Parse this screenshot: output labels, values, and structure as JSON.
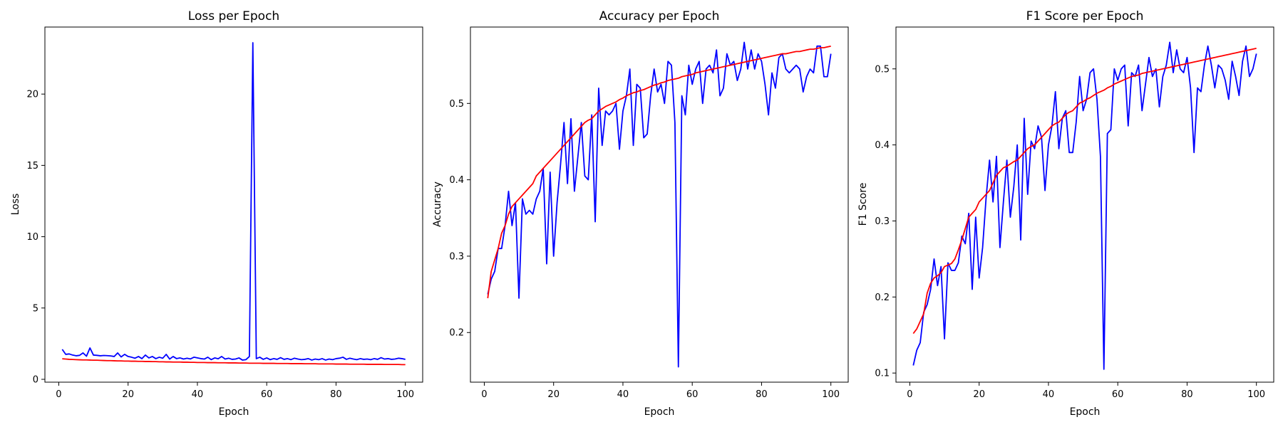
{
  "chart_data": [
    {
      "type": "line",
      "title": "Loss per Epoch",
      "xlabel": "Epoch",
      "ylabel": "Loss",
      "xlim": [
        -4,
        105
      ],
      "ylim": [
        -0.2,
        24.7
      ],
      "xticks": [
        0,
        20,
        40,
        60,
        80,
        100
      ],
      "yticks": [
        0,
        5,
        10,
        15,
        20
      ],
      "grid": false,
      "legend": "none",
      "x": [
        1,
        2,
        3,
        4,
        5,
        6,
        7,
        8,
        9,
        10,
        11,
        12,
        13,
        14,
        15,
        16,
        17,
        18,
        19,
        20,
        21,
        22,
        23,
        24,
        25,
        26,
        27,
        28,
        29,
        30,
        31,
        32,
        33,
        34,
        35,
        36,
        37,
        38,
        39,
        40,
        41,
        42,
        43,
        44,
        45,
        46,
        47,
        48,
        49,
        50,
        51,
        52,
        53,
        54,
        55,
        56,
        57,
        58,
        59,
        60,
        61,
        62,
        63,
        64,
        65,
        66,
        67,
        68,
        69,
        70,
        71,
        72,
        73,
        74,
        75,
        76,
        77,
        78,
        79,
        80,
        81,
        82,
        83,
        84,
        85,
        86,
        87,
        88,
        89,
        90,
        91,
        92,
        93,
        94,
        95,
        96,
        97,
        98,
        99,
        100
      ],
      "series": [
        {
          "color": "#0000ff",
          "values": [
            2.1,
            1.75,
            1.78,
            1.7,
            1.65,
            1.68,
            1.85,
            1.62,
            2.2,
            1.7,
            1.68,
            1.65,
            1.67,
            1.66,
            1.64,
            1.6,
            1.85,
            1.57,
            1.75,
            1.6,
            1.55,
            1.48,
            1.6,
            1.45,
            1.7,
            1.5,
            1.6,
            1.45,
            1.55,
            1.48,
            1.75,
            1.42,
            1.6,
            1.45,
            1.5,
            1.42,
            1.48,
            1.43,
            1.55,
            1.5,
            1.45,
            1.42,
            1.55,
            1.38,
            1.5,
            1.44,
            1.6,
            1.42,
            1.48,
            1.4,
            1.42,
            1.5,
            1.35,
            1.38,
            1.6,
            23.6,
            1.45,
            1.55,
            1.4,
            1.5,
            1.38,
            1.45,
            1.4,
            1.52,
            1.4,
            1.45,
            1.38,
            1.48,
            1.42,
            1.38,
            1.4,
            1.45,
            1.35,
            1.42,
            1.38,
            1.45,
            1.35,
            1.42,
            1.38,
            1.45,
            1.48,
            1.55,
            1.4,
            1.48,
            1.42,
            1.38,
            1.45,
            1.4,
            1.42,
            1.38,
            1.45,
            1.4,
            1.52,
            1.42,
            1.45,
            1.4,
            1.42,
            1.48,
            1.45,
            1.4
          ]
        },
        {
          "color": "#ff0000",
          "values": [
            1.44,
            1.42,
            1.4,
            1.39,
            1.38,
            1.37,
            1.36,
            1.36,
            1.35,
            1.34,
            1.34,
            1.33,
            1.32,
            1.31,
            1.31,
            1.3,
            1.29,
            1.29,
            1.28,
            1.28,
            1.27,
            1.27,
            1.26,
            1.26,
            1.25,
            1.25,
            1.24,
            1.24,
            1.23,
            1.23,
            1.22,
            1.22,
            1.21,
            1.21,
            1.21,
            1.2,
            1.2,
            1.19,
            1.19,
            1.18,
            1.18,
            1.18,
            1.17,
            1.17,
            1.17,
            1.16,
            1.16,
            1.16,
            1.15,
            1.15,
            1.15,
            1.14,
            1.14,
            1.14,
            1.13,
            1.13,
            1.13,
            1.13,
            1.12,
            1.12,
            1.12,
            1.12,
            1.11,
            1.11,
            1.11,
            1.11,
            1.1,
            1.1,
            1.1,
            1.1,
            1.09,
            1.09,
            1.09,
            1.09,
            1.08,
            1.08,
            1.08,
            1.08,
            1.08,
            1.07,
            1.07,
            1.07,
            1.07,
            1.06,
            1.06,
            1.06,
            1.06,
            1.06,
            1.05,
            1.05,
            1.05,
            1.05,
            1.05,
            1.04,
            1.04,
            1.04,
            1.04,
            1.04,
            1.03,
            1.03
          ]
        }
      ]
    },
    {
      "type": "line",
      "title": "Accuracy per Epoch",
      "xlabel": "Epoch",
      "ylabel": "Accuracy",
      "xlim": [
        -4,
        105
      ],
      "ylim": [
        0.135,
        0.6
      ],
      "xticks": [
        0,
        20,
        40,
        60,
        80,
        100
      ],
      "yticks": [
        0.2,
        0.3,
        0.4,
        0.5
      ],
      "grid": false,
      "legend": "none",
      "x": [
        1,
        2,
        3,
        4,
        5,
        6,
        7,
        8,
        9,
        10,
        11,
        12,
        13,
        14,
        15,
        16,
        17,
        18,
        19,
        20,
        21,
        22,
        23,
        24,
        25,
        26,
        27,
        28,
        29,
        30,
        31,
        32,
        33,
        34,
        35,
        36,
        37,
        38,
        39,
        40,
        41,
        42,
        43,
        44,
        45,
        46,
        47,
        48,
        49,
        50,
        51,
        52,
        53,
        54,
        55,
        56,
        57,
        58,
        59,
        60,
        61,
        62,
        63,
        64,
        65,
        66,
        67,
        68,
        69,
        70,
        71,
        72,
        73,
        74,
        75,
        76,
        77,
        78,
        79,
        80,
        81,
        82,
        83,
        84,
        85,
        86,
        87,
        88,
        89,
        90,
        91,
        92,
        93,
        94,
        95,
        96,
        97,
        98,
        99,
        100
      ],
      "series": [
        {
          "color": "#0000ff",
          "values": [
            0.25,
            0.27,
            0.28,
            0.31,
            0.31,
            0.34,
            0.385,
            0.34,
            0.37,
            0.245,
            0.375,
            0.355,
            0.36,
            0.355,
            0.375,
            0.385,
            0.415,
            0.29,
            0.41,
            0.3,
            0.37,
            0.42,
            0.475,
            0.395,
            0.48,
            0.385,
            0.43,
            0.475,
            0.405,
            0.4,
            0.485,
            0.345,
            0.52,
            0.445,
            0.49,
            0.485,
            0.49,
            0.5,
            0.44,
            0.49,
            0.51,
            0.545,
            0.445,
            0.525,
            0.52,
            0.455,
            0.46,
            0.51,
            0.545,
            0.515,
            0.525,
            0.5,
            0.555,
            0.55,
            0.475,
            0.155,
            0.51,
            0.485,
            0.55,
            0.525,
            0.545,
            0.555,
            0.5,
            0.545,
            0.55,
            0.54,
            0.57,
            0.51,
            0.52,
            0.565,
            0.55,
            0.555,
            0.53,
            0.545,
            0.58,
            0.545,
            0.57,
            0.545,
            0.565,
            0.555,
            0.525,
            0.485,
            0.54,
            0.52,
            0.56,
            0.565,
            0.545,
            0.54,
            0.545,
            0.55,
            0.545,
            0.515,
            0.535,
            0.545,
            0.54,
            0.575,
            0.575,
            0.535,
            0.535,
            0.565
          ]
        },
        {
          "color": "#ff0000",
          "values": [
            0.245,
            0.28,
            0.295,
            0.31,
            0.33,
            0.34,
            0.355,
            0.365,
            0.37,
            0.375,
            0.38,
            0.385,
            0.39,
            0.395,
            0.405,
            0.41,
            0.415,
            0.42,
            0.425,
            0.43,
            0.435,
            0.44,
            0.445,
            0.45,
            0.455,
            0.46,
            0.465,
            0.47,
            0.475,
            0.478,
            0.48,
            0.485,
            0.49,
            0.493,
            0.496,
            0.498,
            0.5,
            0.502,
            0.505,
            0.507,
            0.51,
            0.512,
            0.514,
            0.515,
            0.517,
            0.518,
            0.52,
            0.522,
            0.524,
            0.525,
            0.527,
            0.528,
            0.53,
            0.531,
            0.532,
            0.533,
            0.535,
            0.536,
            0.537,
            0.538,
            0.54,
            0.541,
            0.542,
            0.543,
            0.544,
            0.545,
            0.546,
            0.547,
            0.548,
            0.549,
            0.55,
            0.551,
            0.552,
            0.553,
            0.554,
            0.555,
            0.556,
            0.557,
            0.558,
            0.559,
            0.56,
            0.561,
            0.562,
            0.563,
            0.564,
            0.565,
            0.565,
            0.566,
            0.567,
            0.568,
            0.568,
            0.569,
            0.57,
            0.571,
            0.571,
            0.572,
            0.573,
            0.573,
            0.574,
            0.575
          ]
        }
      ]
    },
    {
      "type": "line",
      "title": "F1 Score per Epoch",
      "xlabel": "Epoch",
      "ylabel": "F1 Score",
      "xlim": [
        -4,
        105
      ],
      "ylim": [
        0.088,
        0.555
      ],
      "xticks": [
        0,
        20,
        40,
        60,
        80,
        100
      ],
      "yticks": [
        0.1,
        0.2,
        0.3,
        0.4,
        0.5
      ],
      "grid": false,
      "legend": "none",
      "x": [
        1,
        2,
        3,
        4,
        5,
        6,
        7,
        8,
        9,
        10,
        11,
        12,
        13,
        14,
        15,
        16,
        17,
        18,
        19,
        20,
        21,
        22,
        23,
        24,
        25,
        26,
        27,
        28,
        29,
        30,
        31,
        32,
        33,
        34,
        35,
        36,
        37,
        38,
        39,
        40,
        41,
        42,
        43,
        44,
        45,
        46,
        47,
        48,
        49,
        50,
        51,
        52,
        53,
        54,
        55,
        56,
        57,
        58,
        59,
        60,
        61,
        62,
        63,
        64,
        65,
        66,
        67,
        68,
        69,
        70,
        71,
        72,
        73,
        74,
        75,
        76,
        77,
        78,
        79,
        80,
        81,
        82,
        83,
        84,
        85,
        86,
        87,
        88,
        89,
        90,
        91,
        92,
        93,
        94,
        95,
        96,
        97,
        98,
        99,
        100
      ],
      "series": [
        {
          "color": "#0000ff",
          "values": [
            0.11,
            0.13,
            0.14,
            0.18,
            0.19,
            0.21,
            0.25,
            0.215,
            0.24,
            0.145,
            0.245,
            0.235,
            0.235,
            0.245,
            0.28,
            0.27,
            0.31,
            0.21,
            0.305,
            0.225,
            0.265,
            0.33,
            0.38,
            0.325,
            0.385,
            0.265,
            0.325,
            0.38,
            0.305,
            0.345,
            0.4,
            0.275,
            0.435,
            0.335,
            0.405,
            0.395,
            0.425,
            0.41,
            0.34,
            0.4,
            0.425,
            0.47,
            0.395,
            0.435,
            0.445,
            0.39,
            0.39,
            0.43,
            0.49,
            0.445,
            0.46,
            0.495,
            0.5,
            0.46,
            0.385,
            0.105,
            0.415,
            0.42,
            0.5,
            0.485,
            0.5,
            0.505,
            0.425,
            0.495,
            0.49,
            0.505,
            0.445,
            0.48,
            0.515,
            0.49,
            0.5,
            0.45,
            0.49,
            0.505,
            0.535,
            0.495,
            0.525,
            0.5,
            0.495,
            0.515,
            0.475,
            0.39,
            0.475,
            0.47,
            0.505,
            0.53,
            0.505,
            0.475,
            0.505,
            0.5,
            0.485,
            0.46,
            0.51,
            0.49,
            0.465,
            0.51,
            0.53,
            0.49,
            0.5,
            0.52
          ]
        },
        {
          "color": "#ff0000",
          "values": [
            0.152,
            0.158,
            0.168,
            0.178,
            0.205,
            0.218,
            0.225,
            0.228,
            0.232,
            0.24,
            0.242,
            0.244,
            0.25,
            0.262,
            0.275,
            0.29,
            0.305,
            0.31,
            0.315,
            0.325,
            0.33,
            0.335,
            0.34,
            0.35,
            0.36,
            0.365,
            0.37,
            0.372,
            0.375,
            0.378,
            0.38,
            0.385,
            0.39,
            0.395,
            0.398,
            0.4,
            0.405,
            0.41,
            0.415,
            0.42,
            0.425,
            0.428,
            0.43,
            0.435,
            0.44,
            0.443,
            0.445,
            0.45,
            0.455,
            0.457,
            0.46,
            0.462,
            0.465,
            0.468,
            0.47,
            0.472,
            0.475,
            0.477,
            0.48,
            0.482,
            0.484,
            0.486,
            0.488,
            0.49,
            0.491,
            0.492,
            0.494,
            0.495,
            0.496,
            0.497,
            0.498,
            0.499,
            0.5,
            0.501,
            0.502,
            0.503,
            0.504,
            0.505,
            0.506,
            0.507,
            0.508,
            0.509,
            0.51,
            0.511,
            0.512,
            0.513,
            0.514,
            0.515,
            0.516,
            0.517,
            0.518,
            0.519,
            0.52,
            0.521,
            0.522,
            0.523,
            0.524,
            0.525,
            0.526,
            0.527
          ]
        }
      ]
    }
  ]
}
